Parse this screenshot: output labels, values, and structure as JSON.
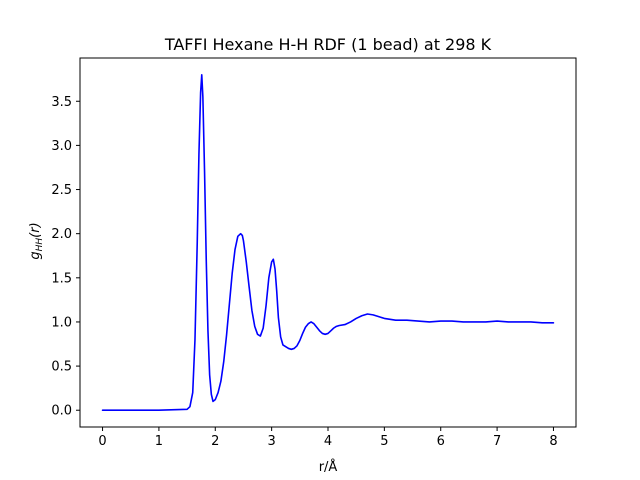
{
  "chart_data": {
    "type": "line",
    "title": "TAFFI Hexane H-H RDF (1 bead) at 298 K",
    "xlabel": "r/Å",
    "ylabel_main": "g",
    "ylabel_sub": "HH",
    "ylabel_tail": "(r)",
    "xlim": [
      -0.4,
      8.4
    ],
    "ylim": [
      -0.19,
      3.99
    ],
    "xticks": [
      0,
      1,
      2,
      3,
      4,
      5,
      6,
      7,
      8
    ],
    "xtick_labels": [
      "0",
      "1",
      "2",
      "3",
      "4",
      "5",
      "6",
      "7",
      "8"
    ],
    "yticks": [
      0.0,
      0.5,
      1.0,
      1.5,
      2.0,
      2.5,
      3.0,
      3.5
    ],
    "ytick_labels": [
      "0.0",
      "0.5",
      "1.0",
      "1.5",
      "2.0",
      "2.5",
      "3.0",
      "3.5"
    ],
    "grid": false,
    "legend": "none",
    "series": [
      {
        "color": "#0000ff",
        "x": [
          0,
          1.0,
          1.5,
          1.55,
          1.6,
          1.64,
          1.68,
          1.71,
          1.74,
          1.76,
          1.78,
          1.81,
          1.84,
          1.87,
          1.9,
          1.93,
          1.96,
          2.0,
          2.05,
          2.1,
          2.15,
          2.2,
          2.25,
          2.3,
          2.35,
          2.4,
          2.45,
          2.48,
          2.5,
          2.55,
          2.6,
          2.65,
          2.7,
          2.75,
          2.8,
          2.85,
          2.9,
          2.95,
          3.0,
          3.03,
          3.06,
          3.09,
          3.12,
          3.16,
          3.2,
          3.25,
          3.3,
          3.35,
          3.4,
          3.45,
          3.5,
          3.55,
          3.6,
          3.65,
          3.7,
          3.75,
          3.8,
          3.85,
          3.9,
          3.95,
          4.0,
          4.05,
          4.1,
          4.15,
          4.2,
          4.3,
          4.4,
          4.5,
          4.6,
          4.7,
          4.8,
          4.9,
          5.0,
          5.1,
          5.2,
          5.4,
          5.6,
          5.8,
          6.0,
          6.2,
          6.4,
          6.6,
          6.8,
          7.0,
          7.2,
          7.4,
          7.6,
          7.8,
          8.0
        ],
        "y": [
          0.0,
          0.0,
          0.01,
          0.04,
          0.2,
          0.8,
          1.9,
          2.9,
          3.6,
          3.8,
          3.55,
          2.7,
          1.7,
          0.9,
          0.4,
          0.18,
          0.1,
          0.12,
          0.2,
          0.33,
          0.55,
          0.85,
          1.2,
          1.55,
          1.82,
          1.97,
          2.0,
          1.98,
          1.92,
          1.68,
          1.4,
          1.13,
          0.95,
          0.86,
          0.84,
          0.93,
          1.18,
          1.5,
          1.68,
          1.71,
          1.6,
          1.35,
          1.05,
          0.83,
          0.74,
          0.72,
          0.7,
          0.69,
          0.7,
          0.73,
          0.79,
          0.87,
          0.94,
          0.98,
          1.0,
          0.98,
          0.94,
          0.9,
          0.87,
          0.86,
          0.87,
          0.9,
          0.93,
          0.95,
          0.96,
          0.97,
          1.0,
          1.04,
          1.07,
          1.09,
          1.08,
          1.06,
          1.04,
          1.03,
          1.02,
          1.02,
          1.01,
          1.0,
          1.01,
          1.01,
          1.0,
          1.0,
          1.0,
          1.01,
          1.0,
          1.0,
          1.0,
          0.99,
          0.99
        ]
      }
    ]
  }
}
